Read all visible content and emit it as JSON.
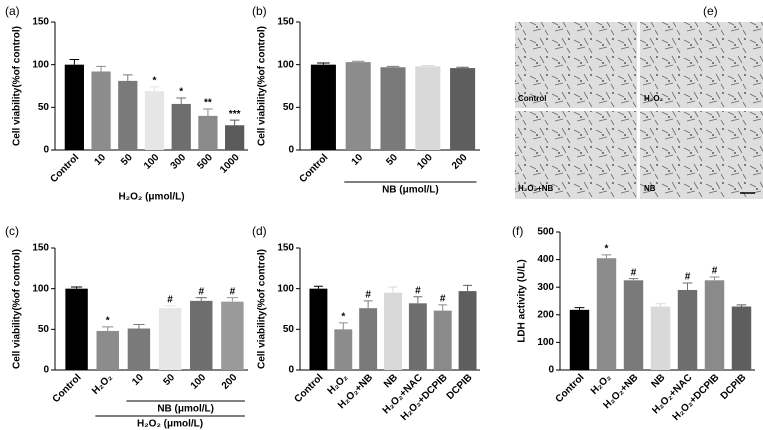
{
  "chart_data": [
    {
      "type": "bar",
      "panel_label": "(a)",
      "ylabel": "Cell viability(%of control)",
      "xlabel": "H₂O₂ (μmol/L)",
      "categories": [
        "Control",
        "10",
        "50",
        "100",
        "300",
        "500",
        "1000"
      ],
      "values": [
        100,
        92,
        81,
        69,
        54,
        40,
        29
      ],
      "errors": [
        6,
        6,
        7,
        5,
        7,
        8,
        6
      ],
      "colors": [
        "#000000",
        "#8c8c8c",
        "#7a7a7a",
        "#e6e6e6",
        "#6e6e6e",
        "#8a8a8a",
        "#5a5a5a"
      ],
      "value_annotations": [
        null,
        null,
        null,
        "*",
        "*",
        "**",
        "***"
      ],
      "ylim": [
        0,
        150
      ],
      "yticks": [
        0,
        50,
        100,
        150
      ]
    },
    {
      "type": "bar",
      "panel_label": "(b)",
      "ylabel": "Cell viability(%of control)",
      "xlabel": "NB (μmol/L)",
      "categories": [
        "Control",
        "10",
        "50",
        "100",
        "200"
      ],
      "values": [
        100,
        103,
        97,
        98,
        96
      ],
      "errors": [
        2,
        1,
        1,
        1,
        1
      ],
      "colors": [
        "#000000",
        "#8c8c8c",
        "#7a7a7a",
        "#d9d9d9",
        "#5e5e5e"
      ],
      "ylim": [
        0,
        150
      ],
      "yticks": [
        0,
        50,
        100,
        150
      ]
    },
    {
      "type": "bar",
      "panel_label": "(c)",
      "ylabel": "Cell viability(%of control)",
      "xlabel": "H₂O₂ (μmol/L)",
      "group_label": "NB (μmol/L)",
      "categories": [
        "Control",
        "H₂O₂",
        "10",
        "50",
        "100",
        "200"
      ],
      "values": [
        100,
        48,
        51,
        76,
        85,
        84
      ],
      "errors": [
        2,
        5,
        5,
        3,
        4,
        5
      ],
      "colors": [
        "#000000",
        "#8c8c8c",
        "#7a7a7a",
        "#e6e6e6",
        "#6e6e6e",
        "#9a9a9a"
      ],
      "value_annotations": [
        null,
        "*",
        null,
        "#",
        "#",
        "#"
      ],
      "ylim": [
        0,
        150
      ],
      "yticks": [
        0,
        50,
        100,
        150
      ]
    },
    {
      "type": "bar",
      "panel_label": "(d)",
      "ylabel": "Cell viability(%of control)",
      "categories": [
        "Control",
        "H₂O₂",
        "H₂O₂+NB",
        "NB",
        "H₂O₂+NAC",
        "H₂O₂+DCPIB",
        "DCPIB"
      ],
      "values": [
        100,
        50,
        76,
        95,
        82,
        73,
        97
      ],
      "errors": [
        3,
        8,
        9,
        7,
        8,
        7,
        7
      ],
      "colors": [
        "#000000",
        "#8c8c8c",
        "#7a7a7a",
        "#d9d9d9",
        "#6e6e6e",
        "#8a8a8a",
        "#5e5e5e"
      ],
      "value_annotations": [
        null,
        "*",
        "#",
        null,
        "#",
        "#",
        null
      ],
      "ylim": [
        0,
        150
      ],
      "yticks": [
        0,
        50,
        100,
        150
      ]
    },
    {
      "type": "bar",
      "panel_label": "(f)",
      "ylabel": "LDH activity (U/L)",
      "categories": [
        "Control",
        "H₂O₂",
        "H₂O₂+NB",
        "NB",
        "H₂O₂+NAC",
        "H₂O₂+DCPIB",
        "DCPIB"
      ],
      "values": [
        218,
        405,
        325,
        230,
        290,
        325,
        230
      ],
      "errors": [
        8,
        12,
        6,
        10,
        25,
        12,
        6
      ],
      "colors": [
        "#000000",
        "#8c8c8c",
        "#7a7a7a",
        "#d9d9d9",
        "#6e6e6e",
        "#8a8a8a",
        "#5e5e5e"
      ],
      "value_annotations": [
        null,
        "*",
        "#",
        null,
        "#",
        "#",
        null
      ],
      "ylim": [
        0,
        500
      ],
      "yticks": [
        0,
        100,
        200,
        300,
        400,
        500
      ]
    }
  ],
  "image_panel": {
    "panel_label": "(e)",
    "labels": [
      "Control",
      "H₂O₂",
      "H₂O₂+NB",
      "NB"
    ]
  }
}
